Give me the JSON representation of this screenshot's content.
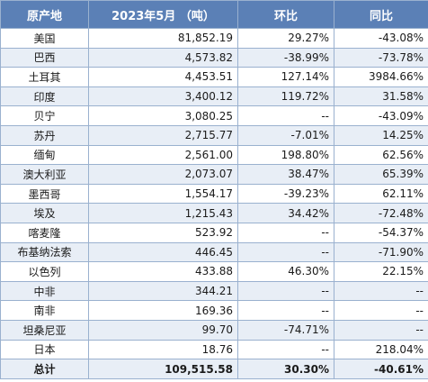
{
  "table": {
    "headers": [
      "原产地",
      "2023年5月 （吨）",
      "环比",
      "同比"
    ],
    "rows": [
      {
        "origin": "美国",
        "volume": "81,852.19",
        "mom": "29.27%",
        "yoy": "-43.08%"
      },
      {
        "origin": "巴西",
        "volume": "4,573.82",
        "mom": "-38.99%",
        "yoy": "-73.78%"
      },
      {
        "origin": "土耳其",
        "volume": "4,453.51",
        "mom": "127.14%",
        "yoy": "3984.66%"
      },
      {
        "origin": "印度",
        "volume": "3,400.12",
        "mom": "119.72%",
        "yoy": "31.58%"
      },
      {
        "origin": "贝宁",
        "volume": "3,080.25",
        "mom": "--",
        "yoy": "-43.09%"
      },
      {
        "origin": "苏丹",
        "volume": "2,715.77",
        "mom": "-7.01%",
        "yoy": "14.25%"
      },
      {
        "origin": "缅甸",
        "volume": "2,561.00",
        "mom": "198.80%",
        "yoy": "62.56%"
      },
      {
        "origin": "澳大利亚",
        "volume": "2,073.07",
        "mom": "38.47%",
        "yoy": "65.39%"
      },
      {
        "origin": "墨西哥",
        "volume": "1,554.17",
        "mom": "-39.23%",
        "yoy": "62.11%"
      },
      {
        "origin": "埃及",
        "volume": "1,215.43",
        "mom": "34.42%",
        "yoy": "-72.48%"
      },
      {
        "origin": "喀麦隆",
        "volume": "523.92",
        "mom": "--",
        "yoy": "-54.37%"
      },
      {
        "origin": "布基纳法索",
        "volume": "446.45",
        "mom": "--",
        "yoy": "-71.90%"
      },
      {
        "origin": "以色列",
        "volume": "433.88",
        "mom": "46.30%",
        "yoy": "22.15%"
      },
      {
        "origin": "中非",
        "volume": "344.21",
        "mom": "--",
        "yoy": "--"
      },
      {
        "origin": "南非",
        "volume": "169.36",
        "mom": "--",
        "yoy": "--"
      },
      {
        "origin": "坦桑尼亚",
        "volume": "99.70",
        "mom": "-74.71%",
        "yoy": "--"
      },
      {
        "origin": "日本",
        "volume": "18.76",
        "mom": "--",
        "yoy": "218.04%"
      }
    ],
    "total": {
      "origin": "总计",
      "volume": "109,515.58",
      "mom": "30.30%",
      "yoy": "-40.61%"
    }
  }
}
